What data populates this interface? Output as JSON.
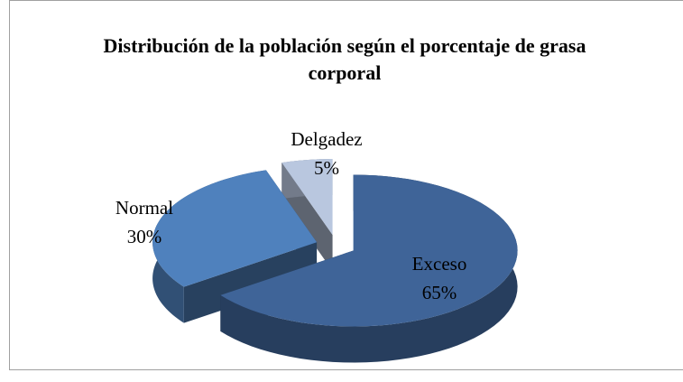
{
  "chart_data": {
    "type": "pie",
    "title": "Distribución de la población según el porcentaje de grasa corporal",
    "categories": [
      "Exceso",
      "Normal",
      "Delgadez"
    ],
    "values": [
      65,
      30,
      5
    ],
    "value_labels": [
      "65%",
      "30%",
      "5%"
    ],
    "colors": [
      "#3f6498",
      "#4f81bd",
      "#b9c7df"
    ]
  }
}
